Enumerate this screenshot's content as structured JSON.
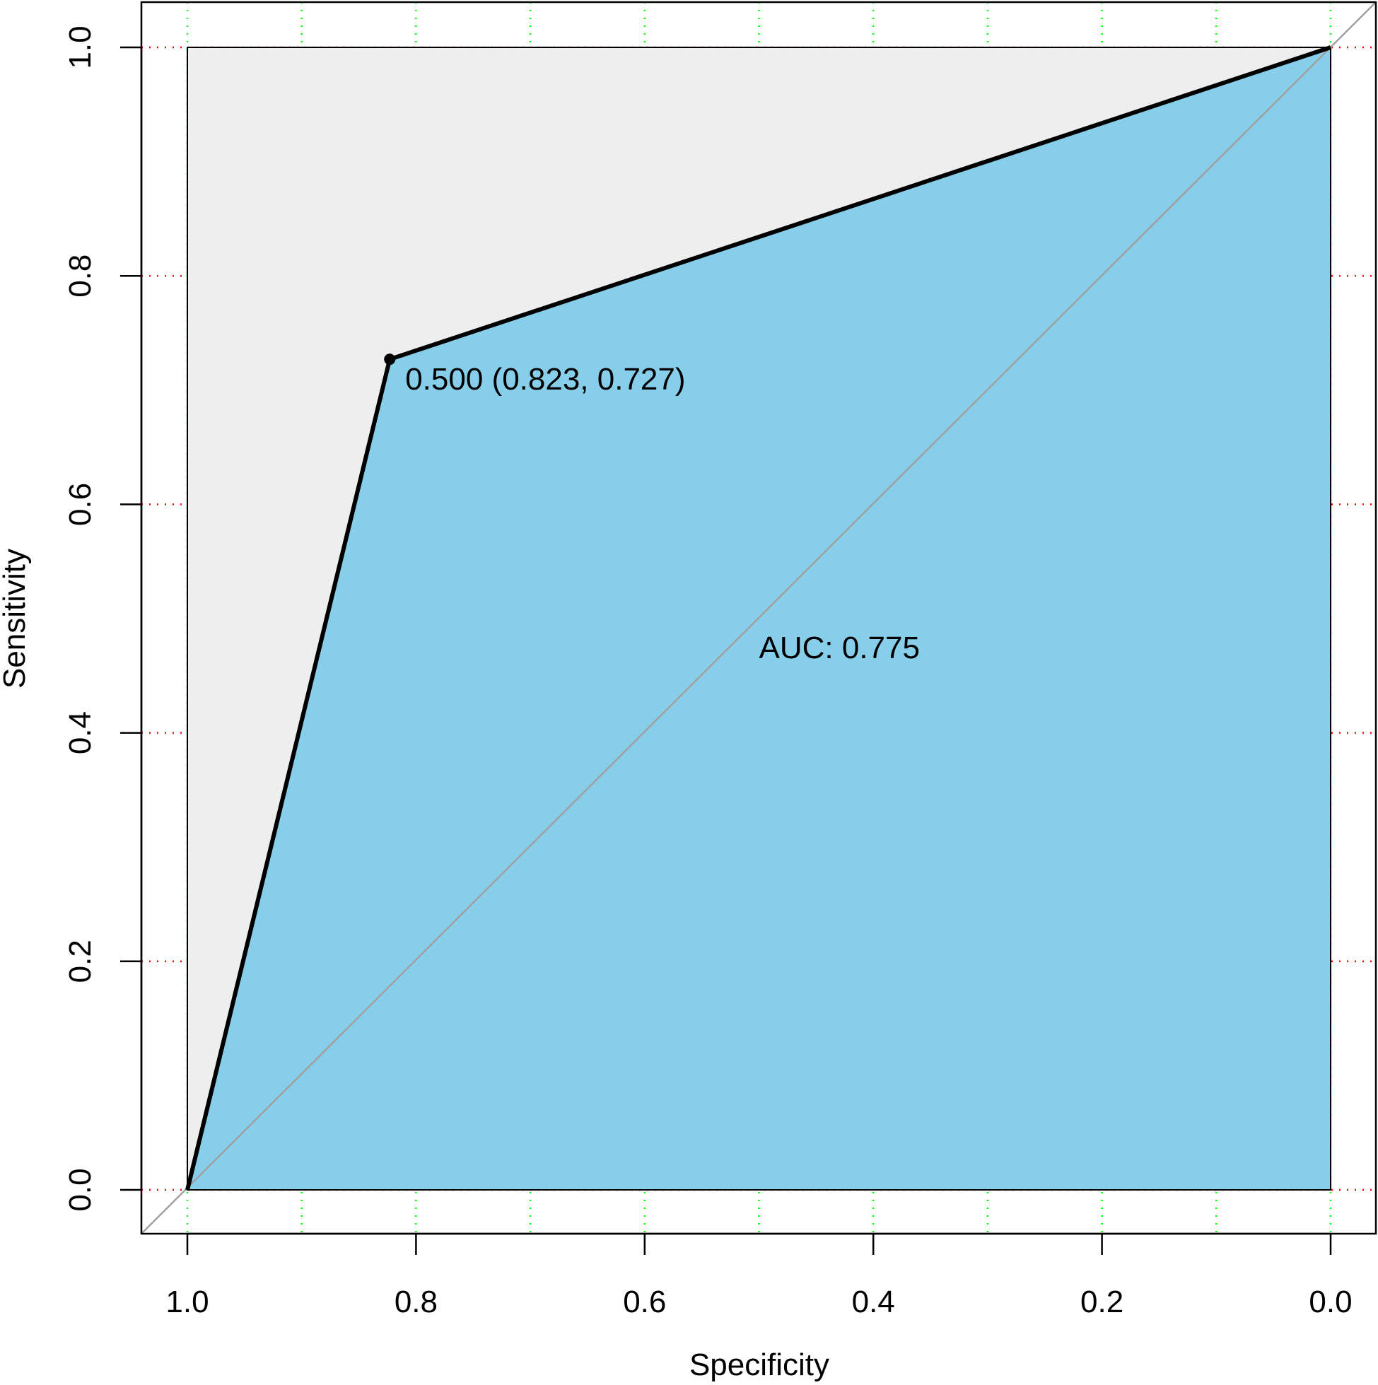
{
  "chart_data": {
    "type": "line",
    "title": "",
    "xlabel": "Specificity",
    "ylabel": "Sensitivity",
    "xlim": [
      1.0,
      0.0
    ],
    "ylim": [
      0.0,
      1.0
    ],
    "x_reversed": true,
    "x_ticks": [
      "1.0",
      "0.8",
      "0.6",
      "0.4",
      "0.2",
      "0.0"
    ],
    "y_ticks": [
      "0.0",
      "0.2",
      "0.4",
      "0.6",
      "0.8",
      "1.0"
    ],
    "grid": {
      "vertical": {
        "color": "#00ff00",
        "style": "dotted",
        "at": [
          1.0,
          0.9,
          0.8,
          0.7,
          0.6,
          0.5,
          0.4,
          0.3,
          0.2,
          0.1,
          0.0
        ]
      },
      "horizontal": {
        "color": "#ff0000",
        "style": "dotted",
        "at": [
          0.0,
          0.2,
          0.4,
          0.6,
          0.8,
          1.0
        ]
      }
    },
    "series": [
      {
        "points": [
          {
            "specificity": 1.0,
            "sensitivity": 0.0
          },
          {
            "specificity": 0.823,
            "sensitivity": 0.727
          },
          {
            "specificity": 0.0,
            "sensitivity": 1.0
          }
        ],
        "color": "#000000"
      }
    ],
    "threshold_point": {
      "specificity": 0.823,
      "sensitivity": 0.727,
      "label": "0.500 (0.823, 0.727)"
    },
    "auc_label": "AUC: 0.775",
    "auc_label_position": {
      "specificity": 0.5,
      "sensitivity": 0.5
    },
    "auc_fill_color": "#87ceeb",
    "max_auc_fill_color": "#eeeeee",
    "diagonal_color": "#a0a0a0"
  }
}
